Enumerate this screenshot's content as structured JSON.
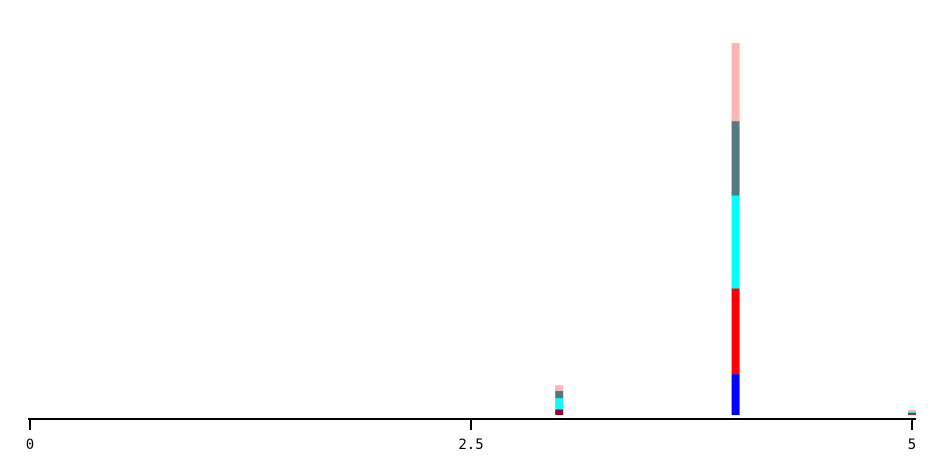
{
  "chart_data": {
    "type": "bar",
    "stacked": true,
    "x": [
      3.0,
      4.0,
      5.0
    ],
    "xlim": [
      0,
      5
    ],
    "ylim": [
      0,
      100
    ],
    "x_ticks": [
      {
        "value": 0,
        "label": "0"
      },
      {
        "value": 2.5,
        "label": "2.5"
      },
      {
        "value": 5,
        "label": "5"
      }
    ],
    "grid": false,
    "series": [
      {
        "color": "#990033",
        "values": [
          1.5,
          0,
          0.2
        ]
      },
      {
        "color": "#0000ff",
        "values": [
          0,
          11,
          0
        ]
      },
      {
        "color": "#ff0000",
        "values": [
          0,
          23,
          0.4
        ]
      },
      {
        "color": "#00ffff",
        "values": [
          3,
          25,
          0.4
        ]
      },
      {
        "color": "#527a80",
        "values": [
          2,
          20,
          0
        ]
      },
      {
        "color": "#ffb3b3",
        "values": [
          1.5,
          21,
          0.3
        ]
      }
    ]
  }
}
